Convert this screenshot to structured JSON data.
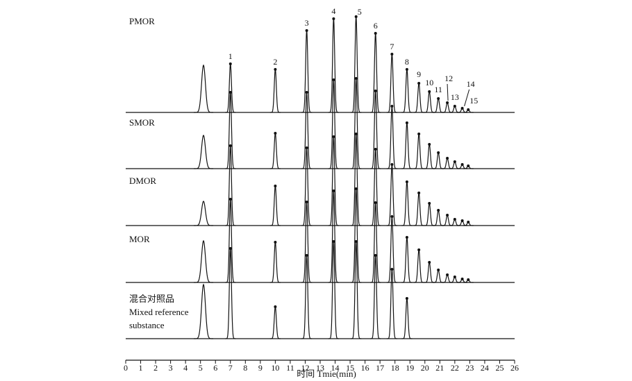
{
  "chart_data": {
    "type": "chromatogram",
    "xlabel": "时间 Tmie(min)",
    "xlim": [
      0,
      26
    ],
    "xticks": [
      0,
      1,
      2,
      3,
      4,
      5,
      6,
      7,
      8,
      9,
      10,
      11,
      12,
      13,
      14,
      15,
      16,
      17,
      18,
      19,
      20,
      21,
      22,
      23,
      24,
      25,
      26
    ],
    "peak_labels": [
      "1",
      "2",
      "3",
      "4",
      "5",
      "6",
      "7",
      "8",
      "9",
      "10",
      "11",
      "12",
      "13",
      "14",
      "15"
    ],
    "peak_times": [
      7.0,
      10.0,
      12.1,
      13.9,
      15.4,
      16.7,
      17.8,
      18.8,
      19.6,
      20.3,
      20.9,
      21.5,
      22.0,
      22.5,
      22.9
    ],
    "solvent_time": 5.2,
    "series": [
      {
        "label_lines": [
          "PMOR"
        ],
        "solvent_height": 68,
        "values": [
          70,
          62,
          118,
          135,
          138,
          114,
          84,
          62,
          42,
          30,
          20,
          14,
          9,
          6,
          4
        ]
      },
      {
        "label_lines": [
          "SMOR"
        ],
        "solvent_height": 48,
        "values": [
          110,
          51,
          110,
          128,
          130,
          112,
          90,
          66,
          50,
          35,
          23,
          15,
          10,
          6,
          4
        ]
      },
      {
        "label_lines": [
          "DMOR"
        ],
        "solvent_height": 35,
        "values": [
          115,
          57,
          112,
          128,
          132,
          110,
          88,
          63,
          47,
          32,
          22,
          15,
          9,
          7,
          5
        ]
      },
      {
        "label_lines": [
          "MOR"
        ],
        "solvent_height": 60,
        "values": [
          120,
          58,
          116,
          132,
          135,
          115,
          95,
          65,
          47,
          29,
          18,
          11,
          8,
          5,
          4
        ]
      },
      {
        "label_lines": [
          "混合对照品",
          "Mixed reference",
          "substance"
        ],
        "solvent_height": 78,
        "values": [
          130,
          46,
          120,
          140,
          140,
          120,
          100,
          58,
          null,
          null,
          null,
          null,
          null,
          null,
          null
        ]
      }
    ]
  }
}
